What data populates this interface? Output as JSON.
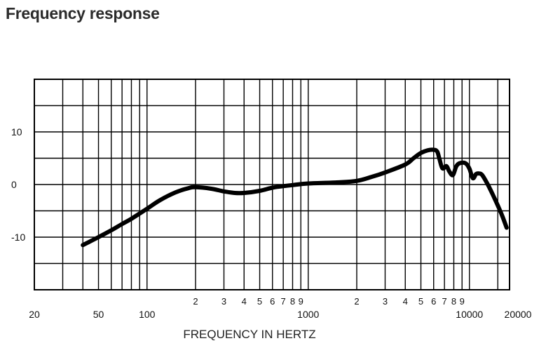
{
  "title": "Frequency response",
  "chart_data": {
    "type": "line",
    "title": "Frequency response",
    "xlabel": "FREQUENCY IN HERTZ",
    "ylabel": "",
    "x_scale": "log",
    "xlim": [
      20,
      20000
    ],
    "ylim": [
      -20,
      20
    ],
    "grid": true,
    "y_ticks": [
      {
        "value": 10,
        "label": "10"
      },
      {
        "value": 0,
        "label": "0"
      },
      {
        "value": -10,
        "label": "-10"
      }
    ],
    "x_major_ticks": [
      {
        "value": 20,
        "label": "20"
      },
      {
        "value": 50,
        "label": "50"
      },
      {
        "value": 100,
        "label": "100"
      },
      {
        "value": 1000,
        "label": "1000"
      },
      {
        "value": 10000,
        "label": "10000"
      },
      {
        "value": 20000,
        "label": "20000"
      }
    ],
    "x_minor_ticks": [
      {
        "value": 200,
        "label": "2"
      },
      {
        "value": 300,
        "label": "3"
      },
      {
        "value": 400,
        "label": "4"
      },
      {
        "value": 500,
        "label": "5"
      },
      {
        "value": 600,
        "label": "6"
      },
      {
        "value": 700,
        "label": "7"
      },
      {
        "value": 800,
        "label": "8"
      },
      {
        "value": 900,
        "label": "9"
      },
      {
        "value": 2000,
        "label": "2"
      },
      {
        "value": 3000,
        "label": "3"
      },
      {
        "value": 4000,
        "label": "4"
      },
      {
        "value": 5000,
        "label": "5"
      },
      {
        "value": 6000,
        "label": "6"
      },
      {
        "value": 7000,
        "label": "7"
      },
      {
        "value": 8000,
        "label": "8"
      },
      {
        "value": 9000,
        "label": "9"
      }
    ],
    "series": [
      {
        "color": "#000000",
        "x": [
          40,
          50,
          60,
          70,
          80,
          100,
          120,
          150,
          180,
          200,
          250,
          300,
          350,
          400,
          500,
          600,
          700,
          800,
          1000,
          1500,
          2000,
          2500,
          3000,
          4000,
          4500,
          5000,
          5500,
          6000,
          6300,
          6500,
          6800,
          7200,
          7500,
          7900,
          8300,
          8800,
          9500,
          10000,
          10500,
          11000,
          11500,
          12000,
          13000,
          14000,
          15000,
          16000,
          17000
        ],
        "y": [
          -11.5,
          -10,
          -8.7,
          -7.5,
          -6.5,
          -4.6,
          -3,
          -1.5,
          -0.7,
          -0.5,
          -0.8,
          -1.3,
          -1.6,
          -1.6,
          -1.2,
          -0.6,
          -0.3,
          -0.1,
          0.2,
          0.4,
          0.7,
          1.5,
          2.3,
          3.8,
          5,
          6,
          6.5,
          6.6,
          6.3,
          5,
          3.1,
          3.5,
          2.5,
          1.8,
          3.5,
          4.1,
          4,
          3,
          1.2,
          2,
          2.1,
          1.8,
          0,
          -2,
          -4,
          -6,
          -8.2
        ]
      }
    ]
  }
}
